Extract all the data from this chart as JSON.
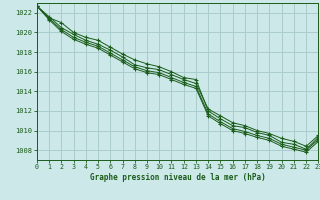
{
  "title": "Graphe pression niveau de la mer (hPa)",
  "bg_color": "#cce8e8",
  "grid_color": "#aacccc",
  "line_color": "#1a5c1a",
  "xlim": [
    0,
    23
  ],
  "ylim": [
    1007.0,
    1023.0
  ],
  "yticks": [
    1008,
    1010,
    1012,
    1014,
    1016,
    1018,
    1020,
    1022
  ],
  "xticks": [
    0,
    1,
    2,
    3,
    4,
    5,
    6,
    7,
    8,
    9,
    10,
    11,
    12,
    13,
    14,
    15,
    16,
    17,
    18,
    19,
    20,
    21,
    22,
    23
  ],
  "series": [
    [
      1022.7,
      1021.5,
      1021.0,
      1020.0,
      1019.5,
      1019.2,
      1018.5,
      1017.8,
      1017.2,
      1016.8,
      1016.5,
      1016.0,
      1015.4,
      1015.2,
      1012.0,
      1011.2,
      1010.5,
      1010.3,
      1009.8,
      1009.5,
      1008.8,
      1008.6,
      1008.1,
      1009.3
    ],
    [
      1022.7,
      1021.6,
      1020.5,
      1019.8,
      1019.2,
      1018.8,
      1018.2,
      1017.5,
      1016.7,
      1016.4,
      1016.2,
      1015.7,
      1015.2,
      1014.8,
      1012.2,
      1011.5,
      1010.8,
      1010.5,
      1010.0,
      1009.7,
      1009.2,
      1008.9,
      1008.4,
      1009.5
    ],
    [
      1022.7,
      1021.4,
      1020.3,
      1019.5,
      1019.0,
      1018.6,
      1017.9,
      1017.2,
      1016.5,
      1016.1,
      1015.9,
      1015.4,
      1014.9,
      1014.5,
      1011.7,
      1010.9,
      1010.2,
      1009.9,
      1009.5,
      1009.2,
      1008.6,
      1008.3,
      1008.0,
      1009.1
    ],
    [
      1022.7,
      1021.3,
      1020.1,
      1019.3,
      1018.8,
      1018.4,
      1017.7,
      1017.0,
      1016.3,
      1015.9,
      1015.7,
      1015.2,
      1014.7,
      1014.3,
      1011.5,
      1010.7,
      1010.0,
      1009.7,
      1009.3,
      1009.0,
      1008.4,
      1008.1,
      1007.8,
      1008.9
    ]
  ]
}
